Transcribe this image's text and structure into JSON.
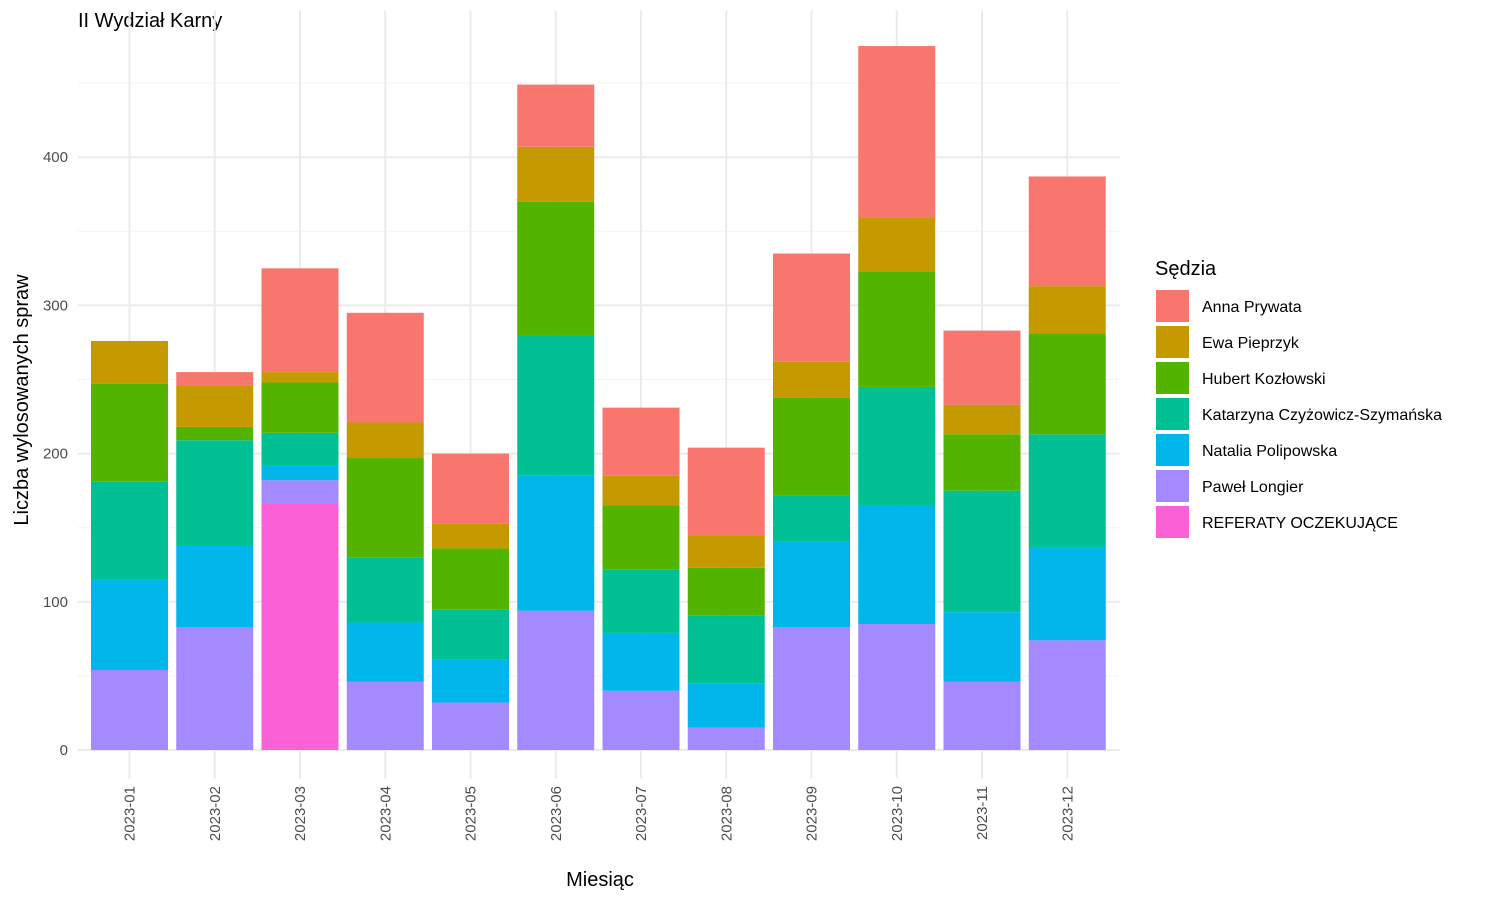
{
  "chart_data": {
    "type": "bar",
    "stacked": true,
    "title": "II Wydział Karny",
    "xlabel": "Miesiąc",
    "ylabel": "Liczba wylosowanych spraw",
    "ylim": [
      0,
      500
    ],
    "yticks": [
      0,
      100,
      200,
      300,
      400
    ],
    "grid": true,
    "legend_title": "Sędzia",
    "legend_position": "right",
    "categories": [
      "2023-01",
      "2023-02",
      "2023-03",
      "2023-04",
      "2023-05",
      "2023-06",
      "2023-07",
      "2023-08",
      "2023-09",
      "2023-10",
      "2023-11",
      "2023-12"
    ],
    "series": [
      {
        "name": "Anna Prywata",
        "color": "#F8766D",
        "values": [
          0,
          9,
          70,
          74,
          47,
          42,
          46,
          59,
          73,
          116,
          50,
          74
        ]
      },
      {
        "name": "Ewa Pieprzyk",
        "color": "#C49A00",
        "values": [
          29,
          28,
          7,
          24,
          17,
          37,
          20,
          22,
          24,
          36,
          20,
          32
        ]
      },
      {
        "name": "Hubert Kozłowski",
        "color": "#53B400",
        "values": [
          66,
          9,
          34,
          67,
          41,
          90,
          43,
          32,
          66,
          78,
          38,
          68
        ]
      },
      {
        "name": "Katarzyna Czyżowicz-Szymańska",
        "color": "#00C094",
        "values": [
          66,
          71,
          22,
          44,
          34,
          95,
          43,
          46,
          31,
          80,
          82,
          76
        ]
      },
      {
        "name": "Natalia Polipowska",
        "color": "#00B6EB",
        "values": [
          61,
          55,
          10,
          40,
          29,
          91,
          39,
          30,
          58,
          80,
          47,
          63
        ]
      },
      {
        "name": "Paweł Longier",
        "color": "#A58AFF",
        "values": [
          54,
          83,
          16,
          46,
          32,
          94,
          40,
          15,
          83,
          85,
          46,
          74
        ]
      },
      {
        "name": "REFERATY OCZEKUJĄCE",
        "color": "#FB61D7",
        "values": [
          0,
          0,
          166,
          0,
          0,
          0,
          0,
          0,
          0,
          0,
          0,
          0
        ]
      }
    ]
  }
}
